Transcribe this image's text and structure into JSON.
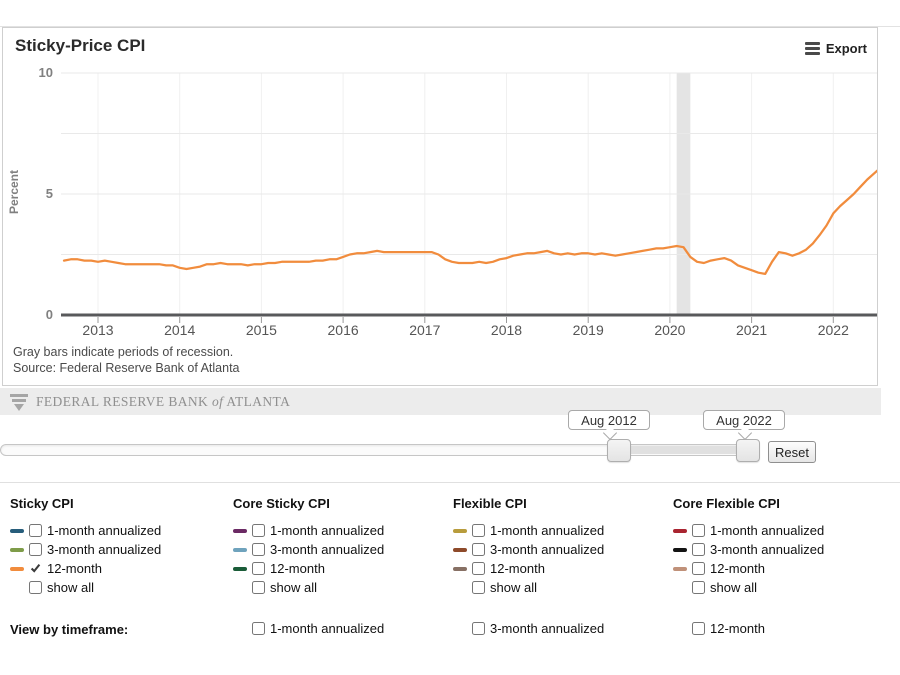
{
  "header": {
    "title": "Sticky-Price CPI",
    "export_label": "Export"
  },
  "chart_data": {
    "type": "line",
    "title": "Sticky-Price CPI",
    "ylabel": "Percent",
    "ylim": [
      0,
      10
    ],
    "yticks": [
      0,
      5,
      10
    ],
    "gridlines_y": [
      2.5,
      5,
      7.5,
      10
    ],
    "xticks": [
      2013,
      2014,
      2015,
      2016,
      2017,
      2018,
      2019,
      2020,
      2021,
      2022
    ],
    "x_start": "Aug 2012",
    "x_end": "Aug 2022",
    "x_frequency": "monthly",
    "recession_bands": [
      {
        "start": 2020.083,
        "end": 2020.25
      }
    ],
    "series": [
      {
        "name": "Sticky CPI 12-month",
        "color": "#f18c3d",
        "values": [
          2.25,
          2.3,
          2.3,
          2.25,
          2.25,
          2.2,
          2.25,
          2.2,
          2.15,
          2.1,
          2.1,
          2.1,
          2.1,
          2.1,
          2.1,
          2.05,
          2.05,
          1.95,
          1.9,
          1.95,
          2.0,
          2.1,
          2.1,
          2.15,
          2.1,
          2.1,
          2.1,
          2.05,
          2.1,
          2.1,
          2.15,
          2.15,
          2.2,
          2.2,
          2.2,
          2.2,
          2.2,
          2.25,
          2.25,
          2.3,
          2.3,
          2.4,
          2.5,
          2.55,
          2.55,
          2.6,
          2.65,
          2.6,
          2.6,
          2.6,
          2.6,
          2.6,
          2.6,
          2.6,
          2.6,
          2.5,
          2.3,
          2.2,
          2.15,
          2.15,
          2.15,
          2.2,
          2.15,
          2.2,
          2.3,
          2.35,
          2.45,
          2.5,
          2.55,
          2.55,
          2.6,
          2.65,
          2.55,
          2.5,
          2.55,
          2.5,
          2.55,
          2.55,
          2.5,
          2.55,
          2.5,
          2.45,
          2.5,
          2.55,
          2.6,
          2.65,
          2.7,
          2.75,
          2.75,
          2.8,
          2.85,
          2.8,
          2.4,
          2.2,
          2.15,
          2.25,
          2.3,
          2.35,
          2.25,
          2.05,
          1.95,
          1.85,
          1.75,
          1.7,
          2.2,
          2.6,
          2.55,
          2.45,
          2.55,
          2.7,
          2.95,
          3.3,
          3.7,
          4.2,
          4.5,
          4.75,
          5.0,
          5.3,
          5.6,
          5.85,
          6.1
        ]
      }
    ],
    "colors": {
      "line": "#f18c3d",
      "recession_band": "#e4e4e4",
      "axis": "#58595b",
      "grid": "#e9e9e9"
    }
  },
  "notes": {
    "recession": "Gray bars indicate periods of recession.",
    "source": "Source: Federal Reserve Bank of Atlanta"
  },
  "logo": {
    "bank": "FEDERAL RESERVE BANK",
    "of": "of",
    "city": "ATLANTA"
  },
  "slider": {
    "start_label": "Aug 2012",
    "end_label": "Aug 2022",
    "reset_label": "Reset"
  },
  "legend": {
    "columns": [
      {
        "title": "Sticky CPI",
        "items": [
          {
            "label": "1-month annualized",
            "swatch": "#275d7b",
            "checked": false
          },
          {
            "label": "3-month annualized",
            "swatch": "#7e9c49",
            "checked": false
          },
          {
            "label": "12-month",
            "swatch": "#f18c3d",
            "checked": true
          },
          {
            "label": "show all",
            "swatch": "",
            "checked": false
          }
        ]
      },
      {
        "title": "Core Sticky CPI",
        "items": [
          {
            "label": "1-month annualized",
            "swatch": "#6b2a64",
            "checked": false
          },
          {
            "label": "3-month annualized",
            "swatch": "#6fa3bd",
            "checked": false
          },
          {
            "label": "12-month",
            "swatch": "#1a5c38",
            "checked": false
          },
          {
            "label": "show all",
            "swatch": "",
            "checked": false
          }
        ]
      },
      {
        "title": "Flexible CPI",
        "items": [
          {
            "label": "1-month annualized",
            "swatch": "#b89c3c",
            "checked": false
          },
          {
            "label": "3-month annualized",
            "swatch": "#8e4a2a",
            "checked": false
          },
          {
            "label": "12-month",
            "swatch": "#877064",
            "checked": false
          },
          {
            "label": "show all",
            "swatch": "",
            "checked": false
          }
        ]
      },
      {
        "title": "Core Flexible CPI",
        "items": [
          {
            "label": "1-month annualized",
            "swatch": "#a92430",
            "checked": false
          },
          {
            "label": "3-month annualized",
            "swatch": "#141414",
            "checked": false
          },
          {
            "label": "12-month",
            "swatch": "#c09179",
            "checked": false
          },
          {
            "label": "show all",
            "swatch": "",
            "checked": false
          }
        ]
      }
    ],
    "view_by": {
      "label": "View by timeframe:",
      "options": [
        {
          "label": "1-month annualized",
          "checked": false
        },
        {
          "label": "3-month annualized",
          "checked": false
        },
        {
          "label": "12-month",
          "checked": false
        }
      ]
    }
  }
}
